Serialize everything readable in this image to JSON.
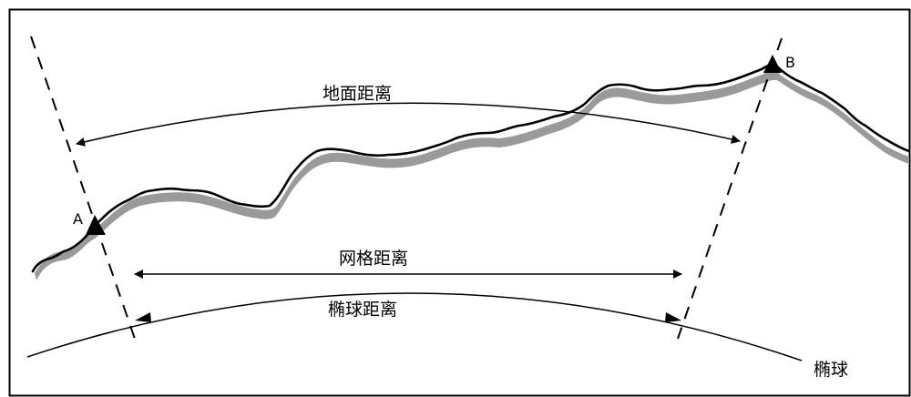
{
  "labels": {
    "ground_distance": "地面距离",
    "grid_distance": "网格距离",
    "ellipsoid_distance": "椭球距离",
    "ellipsoid": "椭球",
    "point_a": "A",
    "point_b": "B"
  },
  "colors": {
    "line": "#000000",
    "terrain_shadow": "#9a9a9a",
    "border": "#000000",
    "background": "#ffffff"
  }
}
